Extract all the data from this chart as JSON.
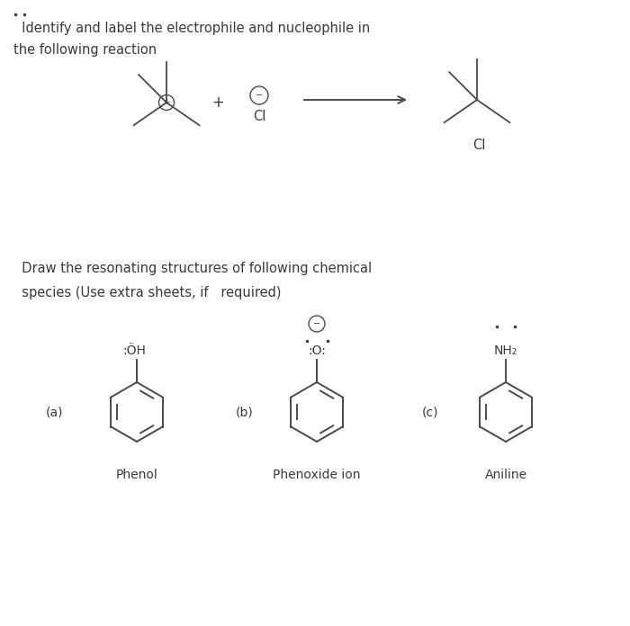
{
  "bg_color": "#ffffff",
  "title_line1": "  Identify and label the electrophile and nucleophile in",
  "title_line2": "the following reaction",
  "section2_line1": "  Draw the resonating structures of following chemical",
  "section2_line2": "  species (Use extra sheets, if   required)",
  "label_a": "(a)",
  "label_b": "(b)",
  "label_c": "(c)",
  "label_phenol": "Phenol",
  "label_phenoxide": "Phenoxide ion",
  "label_aniline": "Aniline",
  "text_color": "#3a3a3a",
  "line_color": "#4a4a4a"
}
